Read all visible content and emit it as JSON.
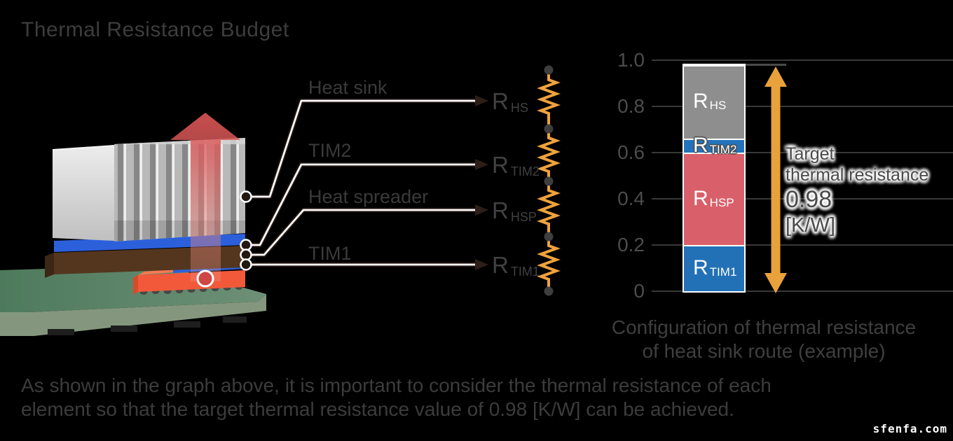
{
  "title": "Thermal Resistance Budget",
  "diagram": {
    "labels": {
      "heat_sink": "Heat sink",
      "tim2": "TIM2",
      "heat_spreader": "Heat spreader",
      "tim1": "TIM1"
    },
    "resistors": [
      {
        "main": "R",
        "sub": "HS"
      },
      {
        "main": "R",
        "sub": "TIM2"
      },
      {
        "main": "R",
        "sub": "HSP"
      },
      {
        "main": "R",
        "sub": "TIM1"
      }
    ]
  },
  "chart_data": {
    "type": "bar",
    "stacked": true,
    "title": "Configuration of thermal resistance of heat sink route (example)",
    "caption_lines": [
      "Configuration of thermal resistance",
      "of heat sink route (example)"
    ],
    "xlabel": "",
    "ylabel": "",
    "ylim": [
      0,
      1.0
    ],
    "grid": true,
    "legend": "none",
    "yticks": [
      {
        "v": 0,
        "label": "0"
      },
      {
        "v": 0.2,
        "label": "0.2"
      },
      {
        "v": 0.4,
        "label": "0.4"
      },
      {
        "v": 0.6,
        "label": "0.6"
      },
      {
        "v": 0.8,
        "label": "0.8"
      },
      {
        "v": 1.0,
        "label": "1.0"
      }
    ],
    "segments_bottom_to_top": [
      {
        "name": "R_TIM1",
        "label_main": "R",
        "label_sub": "TIM1",
        "value": 0.2,
        "color": "#2271B6",
        "outlined": false
      },
      {
        "name": "R_HSP",
        "label_main": "R",
        "label_sub": "HSP",
        "value": 0.4,
        "color": "#D9606A",
        "outlined": false
      },
      {
        "name": "R_TIM2",
        "label_main": "R",
        "label_sub": "TIM2",
        "value": 0.06,
        "color": "#2373BC",
        "outlined": true
      },
      {
        "name": "R_HS",
        "label_main": "R",
        "label_sub": "HS",
        "value": 0.32,
        "color": "#8E8E8E",
        "outlined": false
      }
    ],
    "total": 0.98,
    "annotation": {
      "lines": [
        "Target",
        "thermal resistance"
      ],
      "value": "0.98",
      "unit": "[K/W]"
    }
  },
  "footer": {
    "lines": [
      "As shown in the graph above, it is important to consider the thermal resistance of each",
      "element so that the target thermal resistance value of 0.98 [K/W] can be achieved."
    ]
  },
  "watermark": "sfenfa.com",
  "colors": {
    "background": "#000000",
    "arrow_orange": "#E8A13B",
    "resistor_orange": "#F0A23C",
    "bar_blue": "#2271B6",
    "bar_red": "#D9606A",
    "bar_gray": "#8E8E8E",
    "heat_arrow_red": "#DB5353",
    "pcb_green": "#56805F",
    "chip_orange": "#F2593A",
    "spreader_brown": "#54361E",
    "tim_blue": "#2C60DB"
  }
}
